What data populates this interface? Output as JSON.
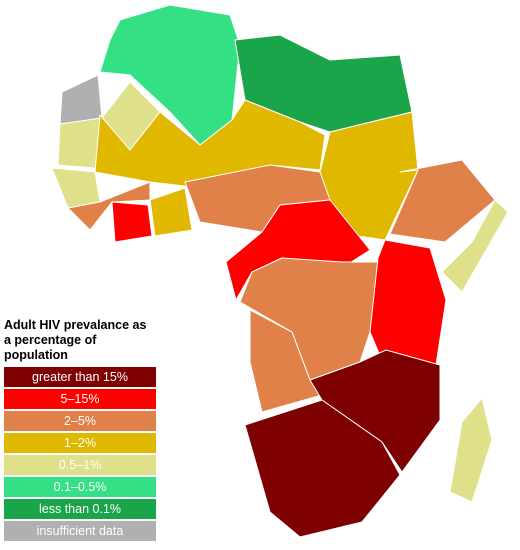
{
  "legend": {
    "title": "Adult HIV prevalance as a percentage of population",
    "items": [
      {
        "label": "greater than 15%",
        "color": "#7f0000"
      },
      {
        "label": "5–15%",
        "color": "#ff0000"
      },
      {
        "label": "2–5%",
        "color": "#e0814a"
      },
      {
        "label": "1–2%",
        "color": "#e0b800"
      },
      {
        "label": "0.5–1%",
        "color": "#dfe08a"
      },
      {
        "label": "0.1–0.5%",
        "color": "#33e084"
      },
      {
        "label": "less than 0.1%",
        "color": "#1aa54a"
      },
      {
        "label": "insufficient data",
        "color": "#b0b0b0"
      }
    ]
  }
}
